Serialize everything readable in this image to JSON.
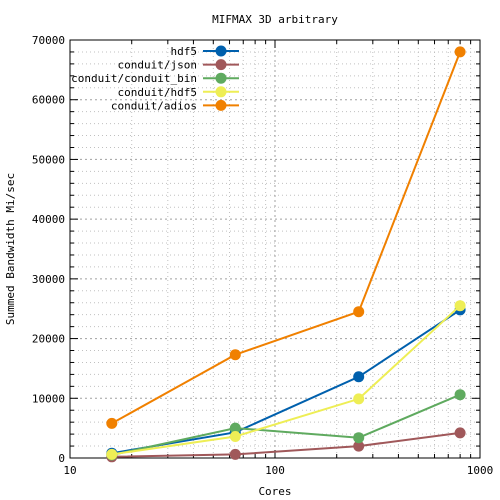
{
  "chart_data": {
    "type": "line",
    "title": "MIFMAX 3D arbitrary",
    "xlabel": "Cores",
    "ylabel": "Summed Bandwidth Mi/sec",
    "x_scale": "log",
    "xlim": [
      10,
      1000
    ],
    "ylim": [
      0,
      70000
    ],
    "x_ticks": [
      10,
      100,
      1000
    ],
    "x_tick_labels": [
      "10",
      "100",
      "1000"
    ],
    "y_ticks": [
      0,
      10000,
      20000,
      30000,
      40000,
      50000,
      60000,
      70000
    ],
    "y_tick_labels": [
      "0",
      "10000",
      "20000",
      "30000",
      "40000",
      "50000",
      "60000",
      "70000"
    ],
    "grid": true,
    "legend_position": "top-left",
    "x": [
      16,
      64,
      256,
      800
    ],
    "series": [
      {
        "name": "hdf5",
        "color": "#0060ad",
        "values": [
          800,
          4300,
          13600,
          24800
        ]
      },
      {
        "name": "conduit/json",
        "color": "#a0585a",
        "values": [
          200,
          600,
          2000,
          4200
        ]
      },
      {
        "name": "conduit/conduit_bin",
        "color": "#5faa5f",
        "values": [
          500,
          5000,
          3400,
          10600
        ]
      },
      {
        "name": "conduit/hdf5",
        "color": "#eeee55",
        "values": [
          600,
          3600,
          9900,
          25500
        ]
      },
      {
        "name": "conduit/adios",
        "color": "#f08000",
        "values": [
          5800,
          17300,
          24500,
          68000
        ]
      }
    ]
  }
}
